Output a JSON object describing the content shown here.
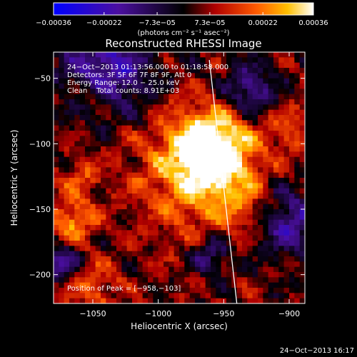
{
  "chart_data": {
    "type": "heatmap",
    "title": "Reconstructed RHESSI Image",
    "xlabel": "Heliocentric X (arcsec)",
    "ylabel": "Heliocentric Y (arcsec)",
    "xlim": [
      -1080,
      -888
    ],
    "ylim": [
      -222,
      -30
    ],
    "xticks": [
      -1050,
      -1000,
      -950,
      -900
    ],
    "yticks": [
      -50,
      -100,
      -150,
      -200
    ],
    "xtick_labels": [
      "−1050",
      "−1000",
      "−950",
      "−900"
    ],
    "ytick_labels": [
      "−50",
      "−100",
      "−150",
      "−200"
    ],
    "colorbar": {
      "range": [
        -0.00036,
        0.00036
      ],
      "ticks": [
        -0.00036,
        -0.00022,
        -7.3e-05,
        7.3e-05,
        0.00022,
        0.00036
      ],
      "tick_labels": [
        "−0.00036",
        "−0.00022",
        "−7.3e−05",
        "7.3e−05",
        "0.00022",
        "0.00036"
      ],
      "unit_text": "(photons cm⁻² s⁻¹ asec⁻²)"
    },
    "annotations": [
      "24−Oct−2013 01:13:56.000 to 01:18:58.000",
      "Detectors: 3F 5F 6F 7F 8F 9F, Att 0",
      "Energy Range: 12.0 − 25.0 keV",
      "Clean    Total counts: 8.91E+03"
    ],
    "peak_label": "Position of Peak = [−958,−103]",
    "peak_position": [
      -958,
      -103
    ],
    "limb_line": [
      [
        -961,
        -36
      ],
      [
        -940,
        -222
      ]
    ],
    "sources": [
      {
        "x": -958,
        "y": -103,
        "sigma": 20,
        "amp": 1.0
      },
      {
        "x": -975,
        "y": -125,
        "sigma": 30,
        "amp": 0.55
      },
      {
        "x": -1065,
        "y": -158,
        "sigma": 12,
        "amp": 0.55
      },
      {
        "x": -1060,
        "y": -125,
        "sigma": 10,
        "amp": 0.35
      },
      {
        "x": -935,
        "y": -145,
        "sigma": 16,
        "amp": 0.3
      },
      {
        "x": -1050,
        "y": -60,
        "sigma": 12,
        "amp": 0.35
      },
      {
        "x": -1050,
        "y": -210,
        "sigma": 14,
        "amp": 0.35
      },
      {
        "x": -900,
        "y": -90,
        "sigma": 14,
        "amp": 0.3
      }
    ],
    "negative_regions": [
      {
        "x": -1040,
        "y": -45,
        "sigma": 22,
        "amp": 0.8
      },
      {
        "x": -930,
        "y": -60,
        "sigma": 14,
        "amp": 0.6
      },
      {
        "x": -900,
        "y": -160,
        "sigma": 18,
        "amp": 0.6
      },
      {
        "x": -1075,
        "y": -190,
        "sigma": 10,
        "amp": 0.6
      },
      {
        "x": -960,
        "y": -185,
        "sigma": 10,
        "amp": 0.5
      }
    ],
    "grid": false
  },
  "footer": {
    "timestamp": "24−Oct−2013 16:17"
  }
}
